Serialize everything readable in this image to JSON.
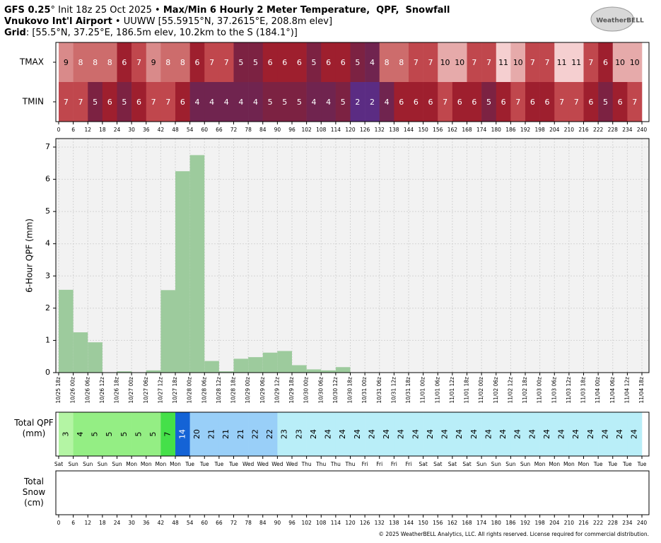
{
  "header": {
    "line1": [
      "GFS 0.25",
      "° Init 18z 25 Oct 2025 • ",
      "Max/Min 6 Hourly 2 Meter Temperature,  QPF,  Snowfall"
    ],
    "line2": [
      "Vnukovo Int'l Airport",
      " • UUWW [55.5915°N, 37.2615°E, 208.8m elev]"
    ],
    "line3": [
      "Grid",
      ": [55.5°N, 37.25°E, 186.5m elev, 10.2km to the S (184.1°)]"
    ],
    "logo": "WeatherBELL",
    "footer": "© 2025 WeatherBELL Analytics, LLC. All rights reserved. License required for commercial distribution."
  },
  "chart_data": [
    {
      "type": "heatmap",
      "rows": [
        {
          "name": "TMAX",
          "values": [
            9,
            8,
            8,
            8,
            6,
            7,
            9,
            8,
            8,
            6,
            7,
            7,
            5,
            5,
            6,
            6,
            6,
            5,
            6,
            6,
            5,
            4,
            8,
            8,
            7,
            7,
            10,
            10,
            7,
            7,
            11,
            10,
            7,
            7,
            11,
            11,
            7,
            6,
            10,
            10
          ]
        },
        {
          "name": "TMIN",
          "values": [
            7,
            7,
            5,
            6,
            5,
            6,
            7,
            7,
            6,
            4,
            4,
            4,
            4,
            4,
            5,
            5,
            5,
            4,
            4,
            5,
            2,
            2,
            4,
            6,
            6,
            6,
            7,
            6,
            6,
            5,
            6,
            7,
            6,
            6,
            7,
            7,
            6,
            5,
            6,
            7
          ]
        }
      ],
      "xticks": [
        0,
        6,
        12,
        18,
        24,
        30,
        36,
        42,
        48,
        54,
        60,
        66,
        72,
        78,
        84,
        90,
        96,
        102,
        108,
        114,
        120,
        126,
        132,
        138,
        144,
        150,
        156,
        162,
        168,
        174,
        180,
        186,
        192,
        198,
        204,
        210,
        216,
        222,
        228,
        234,
        240
      ],
      "cell_colors": {
        "2": "#5b2c83",
        "4": "#70244f",
        "5": "#7c2242",
        "6": "#9e1f2e",
        "7": "#c0474d",
        "8": "#cd6c6c",
        "9": "#d98a8a",
        "10": "#e6aaaa",
        "11": "#f5cfd0"
      }
    },
    {
      "type": "bar",
      "ylabel": "6-Hour QPF (mm)",
      "x_labels": [
        "10/25 18z",
        "10/26 00z",
        "10/26 06z",
        "10/26 12z",
        "10/26 18z",
        "10/27 00z",
        "10/27 06z",
        "10/27 12z",
        "10/27 18z",
        "10/28 00z",
        "10/28 06z",
        "10/28 12z",
        "10/28 18z",
        "10/29 00z",
        "10/29 06z",
        "10/29 12z",
        "10/29 18z",
        "10/30 00z",
        "10/30 06z",
        "10/30 12z",
        "10/30 18z",
        "10/31 00z",
        "10/31 06z",
        "10/31 12z",
        "10/31 18z",
        "11/01 00z",
        "11/01 06z",
        "11/01 12z",
        "11/01 18z",
        "11/02 00z",
        "11/02 06z",
        "11/02 12z",
        "11/02 18z",
        "11/03 00z",
        "11/03 06z",
        "11/03 12z",
        "11/03 18z",
        "11/04 00z",
        "11/04 06z",
        "11/04 12z",
        "11/04 18z"
      ],
      "values": [
        2.57,
        1.25,
        0.94,
        0,
        0.04,
        0,
        0.07,
        2.56,
        6.25,
        6.75,
        0.36,
        0.04,
        0.43,
        0.48,
        0.62,
        0.67,
        0.23,
        0.1,
        0.07,
        0.17,
        0,
        0,
        0,
        0,
        0,
        0,
        0,
        0,
        0,
        0,
        0,
        0,
        0,
        0,
        0,
        0,
        0,
        0,
        0,
        0
      ],
      "color": "#9dcb9d",
      "ylim": [
        0,
        7
      ],
      "yticks": [
        0,
        1,
        2,
        3,
        4,
        5,
        6,
        7
      ],
      "grid": true
    },
    {
      "type": "cells",
      "ylabel": "Total QPF (mm)",
      "values": [
        3,
        4,
        5,
        5,
        5,
        5,
        5,
        7,
        14,
        20,
        21,
        21,
        21,
        22,
        22,
        23,
        23,
        24,
        24,
        24,
        24,
        24,
        24,
        24,
        24,
        24,
        24,
        24,
        24,
        24,
        24,
        24,
        24,
        24,
        24,
        24,
        24,
        24,
        24,
        24
      ],
      "day_labels": [
        "Sat",
        "Sun",
        "Sun",
        "Sun",
        "Sun",
        "Mon",
        "Mon",
        "Mon",
        "Mon",
        "Tue",
        "Tue",
        "Tue",
        "Tue",
        "Wed",
        "Wed",
        "Wed",
        "Wed",
        "Thu",
        "Thu",
        "Thu",
        "Thu",
        "Fri",
        "Fri",
        "Fri",
        "Fri",
        "Sat",
        "Sat",
        "Sat",
        "Sat",
        "Sun",
        "Sun",
        "Sun",
        "Sun",
        "Mon",
        "Mon",
        "Mon",
        "Mon",
        "Tue",
        "Tue",
        "Tue",
        "Tue"
      ],
      "cell_colors": {
        "3": "#b4f5a4",
        "4": "#94ee84",
        "5": "#94ee84",
        "7": "#45e049",
        "14": "#1463d6",
        "20": "#99cff8",
        "21": "#99cff8",
        "22": "#99cff8",
        "23": "#b9eef8",
        "24": "#b9eef8"
      }
    },
    {
      "type": "empty",
      "ylabel": "Total Snow (cm)",
      "xticks": [
        0,
        6,
        12,
        18,
        24,
        30,
        36,
        42,
        48,
        54,
        60,
        66,
        72,
        78,
        84,
        90,
        96,
        102,
        108,
        114,
        120,
        126,
        132,
        138,
        144,
        150,
        156,
        162,
        168,
        174,
        180,
        186,
        192,
        198,
        204,
        210,
        216,
        222,
        228,
        234,
        240
      ]
    }
  ]
}
